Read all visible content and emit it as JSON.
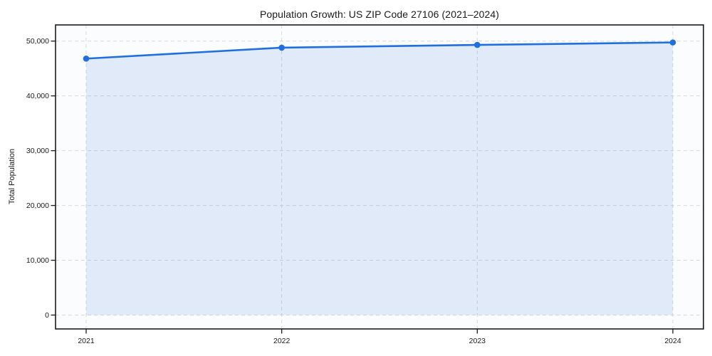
{
  "figure": {
    "title": "Population Growth: US ZIP Code 27106 (2021–2024)",
    "ylabel": "Total Population"
  },
  "chart_data": {
    "type": "line",
    "area_fill": true,
    "title": "Population Growth: US ZIP Code 27106 (2021–2024)",
    "xlabel": "",
    "ylabel": "Total Population",
    "x": [
      "2021",
      "2022",
      "2023",
      "2024"
    ],
    "series": [
      {
        "name": "Total Population",
        "values": [
          46800,
          48800,
          49300,
          49750
        ]
      }
    ],
    "ylim": [
      0,
      50000
    ],
    "yticks": [
      0,
      10000,
      20000,
      30000,
      40000,
      50000
    ],
    "ytick_labels": [
      "0",
      "10,000",
      "20,000",
      "30,000",
      "40,000",
      "50,000"
    ],
    "xtick_labels": [
      "2021",
      "2022",
      "2023",
      "2024"
    ],
    "grid": true,
    "grid_style": "dashed",
    "legend_position": "none",
    "colors": {
      "line": "#1f6fe0",
      "marker": "#1f6fe0",
      "fill": "rgba(31,111,224,0.12)",
      "grid": "#d9d9d9",
      "spine": "#1a1a1a",
      "plot_bg": "#fbfcfd",
      "text": "#1a1a1a"
    }
  }
}
